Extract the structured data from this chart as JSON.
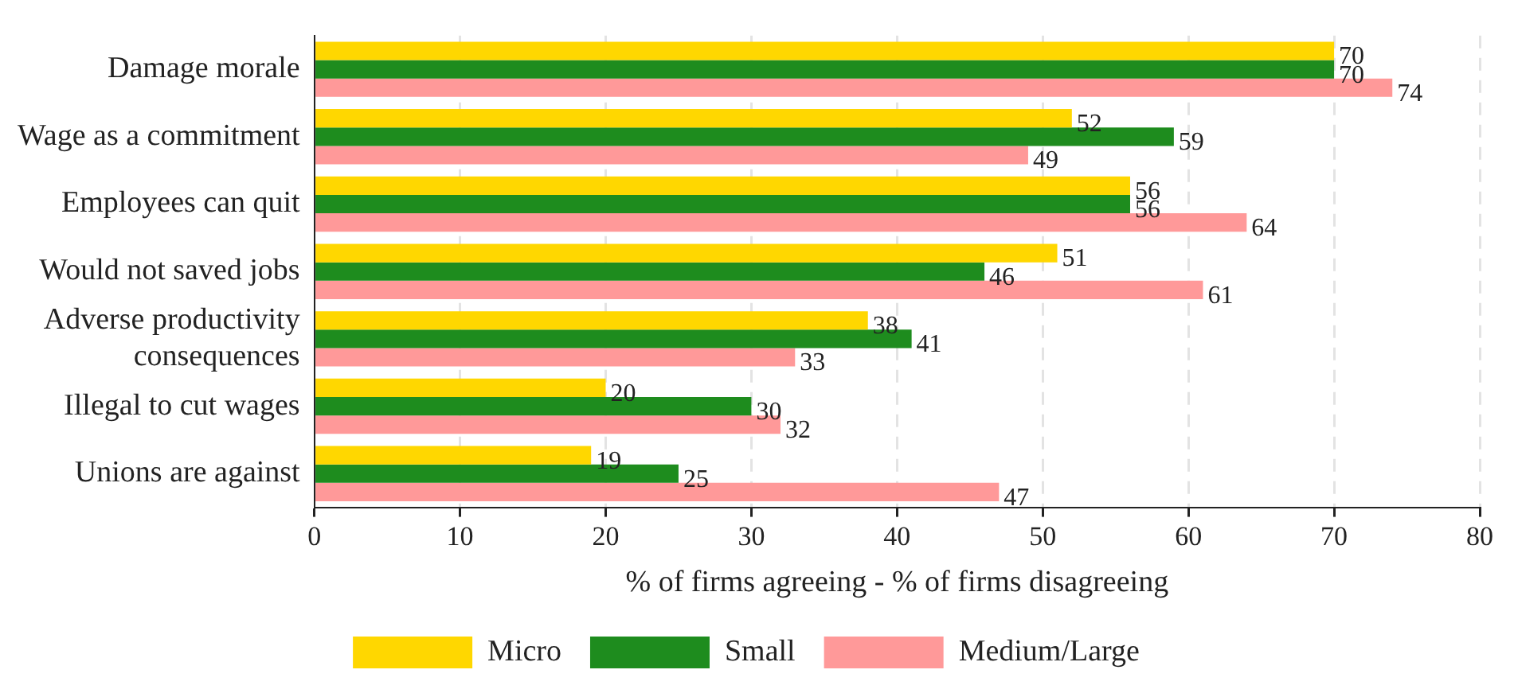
{
  "chart_data": {
    "type": "bar",
    "orientation": "horizontal",
    "xlabel": "% of firms agreeing - % of firms disagreeing",
    "categories": [
      "Damage morale",
      "Wage as a commitment",
      "Employees can quit",
      "Would not saved jobs",
      "Adverse productivity consequences",
      "Illegal to cut wages",
      "Unions are against"
    ],
    "series": [
      {
        "name": "Micro",
        "color": "#ffd700",
        "values": [
          70,
          52,
          56,
          51,
          38,
          20,
          19
        ]
      },
      {
        "name": "Small",
        "color": "#1e8c1e",
        "values": [
          70,
          59,
          56,
          46,
          41,
          30,
          25
        ]
      },
      {
        "name": "Medium/Large",
        "color": "#ff9999",
        "values": [
          74,
          49,
          64,
          61,
          33,
          32,
          47
        ]
      }
    ],
    "xlim": [
      0,
      80
    ],
    "xticks": [
      0,
      10,
      20,
      30,
      40,
      50,
      60,
      70,
      80
    ],
    "grid": "x",
    "legend": "bottom",
    "data_labels": true
  }
}
